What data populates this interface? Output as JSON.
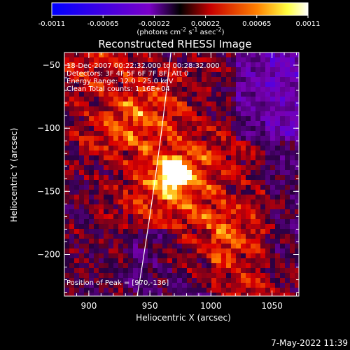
{
  "colorbar": {
    "ticks": [
      "-0.0011",
      "-0.00065",
      "-0.00022",
      "0.00022",
      "0.00065",
      "0.0011"
    ],
    "unit_html": "(photons cm<tspan dy=\"-4\" font-size=\"8\">-2</tspan><tspan dy=\"4\"> s</tspan><tspan dy=\"-4\" font-size=\"8\">-1</tspan><tspan dy=\"4\"> asec</tspan><tspan dy=\"-4\" font-size=\"8\">-2</tspan><tspan dy=\"4\">)</tspan>"
  },
  "image": {
    "title": "Reconstructed RHESSI Image",
    "info": [
      "18-Dec-2007 00:22:32.000 to 00:28:32.000",
      "Detectors: 3F 4F 5F 6F 7F 8F, Att 0",
      "Energy Range: 12.0 - 25.0 keV",
      "Clean     Total counts: 1.16E+04"
    ],
    "peak": "Position of Peak = [970,-136]",
    "xlabel": "Heliocentric X (arcsec)",
    "ylabel": "Heliocentric Y (arcsec)",
    "xticks": [
      "900",
      "950",
      "1000",
      "1050"
    ],
    "yticks": [
      "-50",
      "-100",
      "-150",
      "-200"
    ],
    "x_range": [
      880,
      1072
    ],
    "y_range": [
      -233,
      -40
    ],
    "peak_position": [
      970,
      -136
    ]
  },
  "footer": {
    "timestamp": "7-May-2022 11:39"
  }
}
